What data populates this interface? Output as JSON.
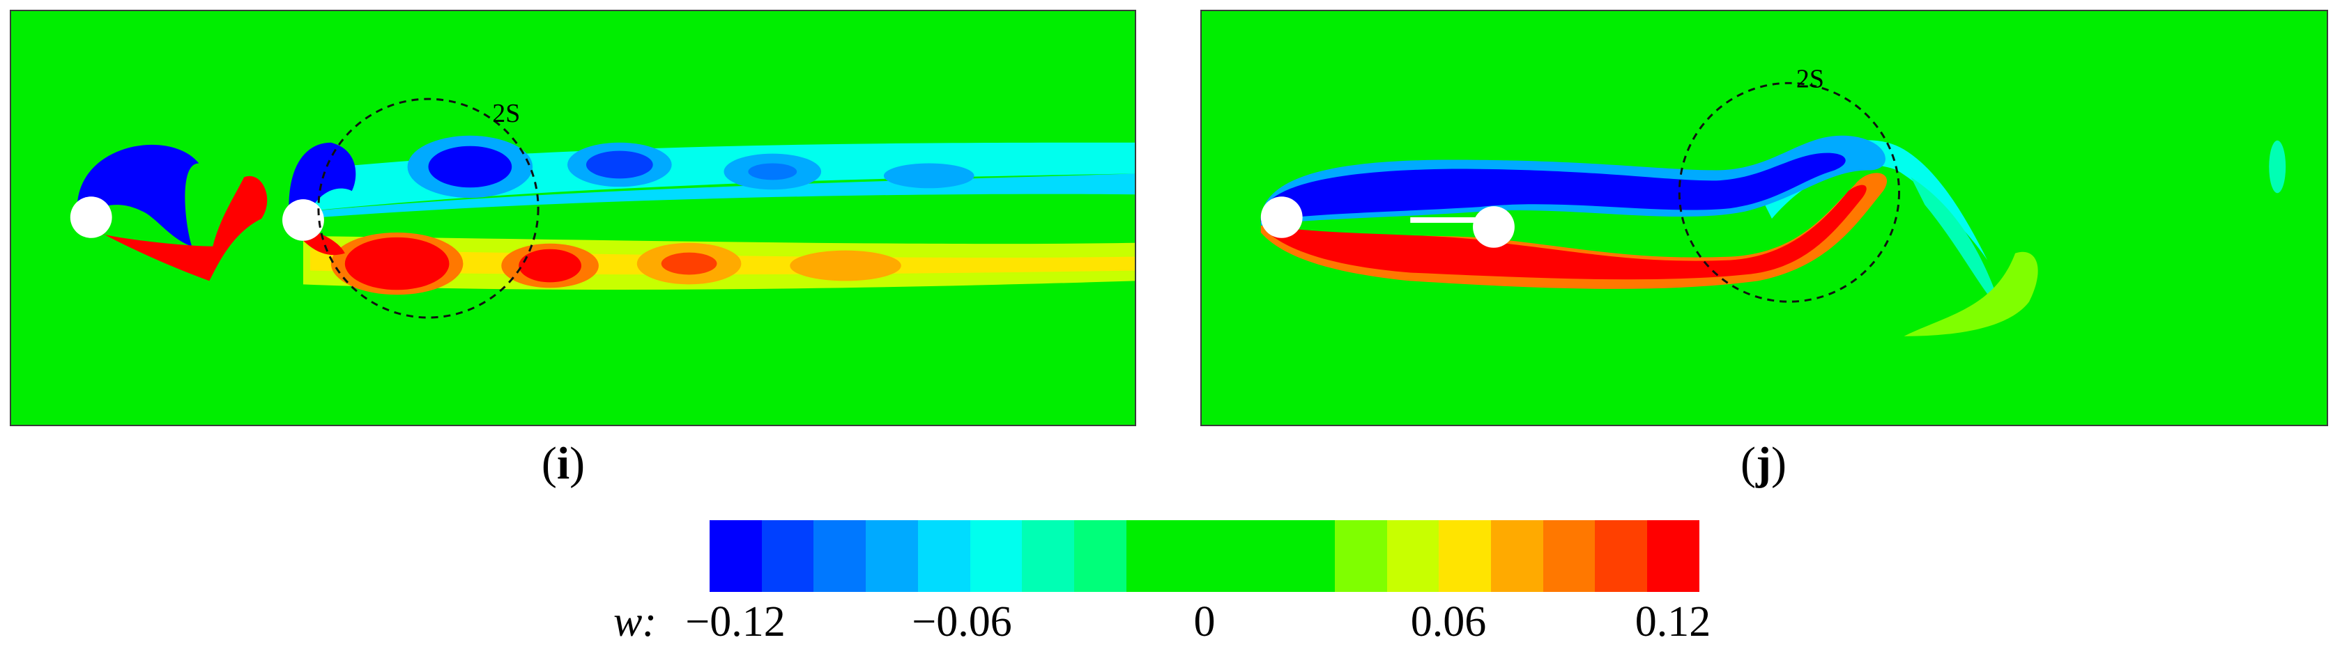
{
  "panels": [
    {
      "label_open": "(",
      "label_letter": "i",
      "label_close": ")",
      "pattern_label": "2S"
    },
    {
      "label_open": "(",
      "label_letter": "j",
      "label_close": ")",
      "pattern_label": "2S"
    }
  ],
  "colorbar": {
    "variable": "w:",
    "ticks": [
      "−0.12",
      "−0.06",
      "0",
      "0.06",
      "0.12"
    ],
    "colors": [
      "#0000ff",
      "#0040ff",
      "#0078ff",
      "#00aaff",
      "#00dcff",
      "#00ffee",
      "#00ffb4",
      "#00ff7a",
      "#00ee00",
      "#00ee00",
      "#00ee00",
      "#00ee00",
      "#7fff00",
      "#c8ff00",
      "#ffe400",
      "#ffaa00",
      "#ff7800",
      "#ff4000",
      "#ff0000"
    ]
  },
  "colors": {
    "background": "#00ee00",
    "negative_strong": "#0000ff",
    "positive_strong": "#ff0000"
  }
}
